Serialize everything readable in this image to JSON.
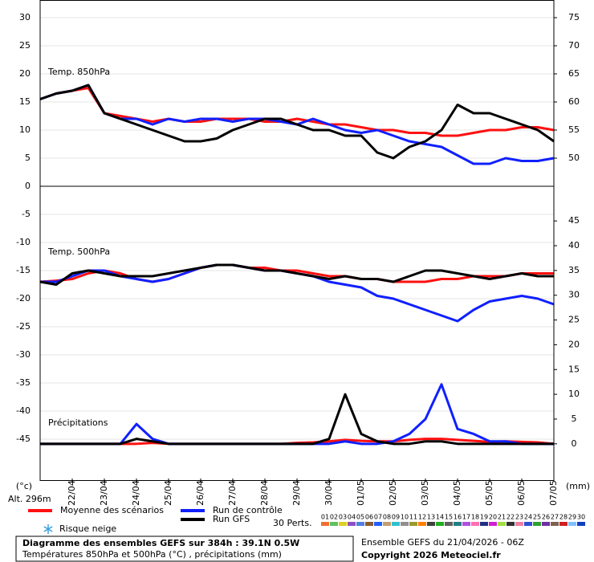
{
  "chart_data": [
    {
      "type": "line",
      "annotation": "Temp. 850hPa",
      "ylim": [
        0,
        33
      ],
      "yticks": [
        5,
        10,
        15,
        20,
        25,
        30
      ],
      "y2lim": [
        45,
        78
      ],
      "y2ticks": [
        50,
        55,
        60,
        65,
        70,
        75
      ],
      "grid": true,
      "series": [
        {
          "name": "Moyenne des scénarios",
          "color": "#ff1010",
          "values": [
            15.5,
            16.5,
            17,
            17.5,
            13,
            12.5,
            12,
            11.5,
            12,
            11.5,
            11.5,
            12,
            12,
            12,
            11.5,
            11.5,
            12,
            11.5,
            11,
            11,
            10.5,
            10,
            10,
            9.5,
            9.5,
            9,
            9,
            9.5,
            10,
            10,
            10.5,
            10.5,
            10
          ]
        },
        {
          "name": "Run de contrôle",
          "color": "#1020ff",
          "values": [
            15.5,
            16.5,
            17,
            18,
            13,
            12,
            12,
            11,
            12,
            11.5,
            12,
            12,
            11.5,
            12,
            12,
            11.5,
            11,
            12,
            11,
            10,
            9.5,
            10,
            9,
            8,
            7.5,
            7,
            5.5,
            4,
            4,
            5,
            4.5,
            4.5,
            5
          ]
        },
        {
          "name": "Run GFS",
          "color": "#000000",
          "values": [
            15.5,
            16.5,
            17,
            18,
            13,
            12,
            11,
            10,
            9,
            8,
            8,
            8.5,
            10,
            11,
            12,
            12,
            11,
            10,
            10,
            9,
            9,
            6,
            5,
            7,
            8,
            10,
            14.5,
            13,
            13,
            12,
            11,
            10,
            8
          ]
        }
      ]
    },
    {
      "type": "line",
      "annotation": "Temp. 500hPa",
      "annotation2": "Précipitations",
      "categories": [
        null,
        null,
        "22/04",
        null,
        "23/04",
        null,
        "24/04",
        null,
        "25/04",
        null,
        "26/04",
        null,
        "27/04",
        null,
        "28/04",
        null,
        "29/04",
        null,
        "30/04",
        null,
        "01/05",
        null,
        "02/05",
        null,
        "03/05",
        null,
        "04/05",
        null,
        "05/05",
        null,
        "06/05",
        null,
        "07/05"
      ],
      "ylim": [
        -52,
        0
      ],
      "yticks": [
        -45,
        -40,
        -35,
        -30,
        -25,
        -20,
        -15,
        -10,
        -5,
        0
      ],
      "y2lim": [
        -7,
        52
      ],
      "y2ticks": [
        0,
        5,
        10,
        15,
        20,
        25,
        30,
        35,
        40,
        45
      ],
      "grid": true,
      "series": [
        {
          "color": "#ff1010",
          "values": [
            -17,
            -16.8,
            -16.5,
            -15.5,
            -15,
            -15.5,
            -16.5,
            -17,
            -16.5,
            -15.5,
            -14.5,
            -14,
            -14,
            -14.5,
            -14.5,
            -15,
            -15,
            -15.5,
            -16,
            -16,
            -16.5,
            -16.5,
            -17,
            -17,
            -17,
            -16.5,
            -16.5,
            -16,
            -16,
            -16,
            -15.5,
            -15.5,
            -15.5
          ]
        },
        {
          "color": "#1020ff",
          "values": [
            -17,
            -17,
            -16,
            -15,
            -15,
            -16,
            -16.5,
            -17,
            -16.5,
            -15.5,
            -14.5,
            -14,
            -14,
            -14.5,
            -15,
            -15,
            -15.5,
            -16,
            -17,
            -17.5,
            -18,
            -19.5,
            -20,
            -21,
            -22,
            -23,
            -24,
            -22,
            -20.5,
            -20,
            -19.5,
            -20,
            -21
          ]
        },
        {
          "color": "#000000",
          "values": [
            -17,
            -17.5,
            -15.5,
            -15,
            -15.5,
            -16,
            -16,
            -16,
            -15.5,
            -15,
            -14.5,
            -14,
            -14,
            -14.5,
            -15,
            -15,
            -15.5,
            -16,
            -16.5,
            -16,
            -16.5,
            -16.5,
            -17,
            -16,
            -15,
            -15,
            -15.5,
            -16,
            -16.5,
            -16,
            -15.5,
            -16,
            -16
          ]
        },
        {
          "color": "#ff1010",
          "axis": "y2",
          "values": [
            0,
            0,
            0,
            0,
            0,
            0,
            0,
            0.2,
            0,
            0,
            0,
            0,
            0,
            0,
            0,
            0,
            0.2,
            0.3,
            0.5,
            0.8,
            0.6,
            0.5,
            0.5,
            0.8,
            1,
            1,
            0.8,
            0.6,
            0.4,
            0.5,
            0.4,
            0.3,
            0
          ]
        },
        {
          "color": "#1020ff",
          "axis": "y2",
          "values": [
            0,
            0,
            0,
            0,
            0,
            0,
            4,
            1,
            0,
            0,
            0,
            0,
            0,
            0,
            0,
            0,
            0,
            0,
            0,
            0.5,
            0,
            0,
            0.5,
            2,
            5,
            12,
            3,
            2,
            0.5,
            0.5,
            0,
            0,
            0
          ]
        },
        {
          "color": "#000000",
          "axis": "y2",
          "values": [
            0,
            0,
            0,
            0,
            0,
            0,
            1,
            0.5,
            0,
            0,
            0,
            0,
            0,
            0,
            0,
            0,
            0,
            0,
            1,
            10,
            2,
            0.5,
            0,
            0,
            0.5,
            0.5,
            0,
            0,
            0,
            0,
            0,
            0,
            0
          ]
        }
      ]
    }
  ],
  "units": {
    "left": "(°c)",
    "right": "(mm)"
  },
  "altitude": "Alt. 296m",
  "snow": "Risque neige",
  "perturbations": {
    "title": "30 Perts.",
    "members": [
      {
        "label": "01",
        "color": "#f07030"
      },
      {
        "label": "02",
        "color": "#60c060"
      },
      {
        "label": "03",
        "color": "#e0d020"
      },
      {
        "label": "04",
        "color": "#9050c0"
      },
      {
        "label": "05",
        "color": "#5080e0"
      },
      {
        "label": "06",
        "color": "#8b5a2b"
      },
      {
        "label": "07",
        "color": "#2060ff"
      },
      {
        "label": "08",
        "color": "#c0a070"
      },
      {
        "label": "09",
        "color": "#30c0d0"
      },
      {
        "label": "10",
        "color": "#909090"
      },
      {
        "label": "11",
        "color": "#9a9a30"
      },
      {
        "label": "12",
        "color": "#ff8000"
      },
      {
        "label": "13",
        "color": "#404040"
      },
      {
        "label": "14",
        "color": "#20b020"
      },
      {
        "label": "15",
        "color": "#606060"
      },
      {
        "label": "16",
        "color": "#208080"
      },
      {
        "label": "17",
        "color": "#b050e0"
      },
      {
        "label": "18",
        "color": "#ff70b0"
      },
      {
        "label": "19",
        "color": "#203080"
      },
      {
        "label": "20",
        "color": "#d020d0"
      },
      {
        "label": "21",
        "color": "#a0e040"
      },
      {
        "label": "22",
        "color": "#303030"
      },
      {
        "label": "23",
        "color": "#f080a0"
      },
      {
        "label": "24",
        "color": "#3050d0"
      },
      {
        "label": "25",
        "color": "#30a030"
      },
      {
        "label": "26",
        "color": "#7030a0"
      },
      {
        "label": "27",
        "color": "#806050"
      },
      {
        "label": "28",
        "color": "#d02020"
      },
      {
        "label": "29",
        "color": "#80c0ff"
      },
      {
        "label": "30",
        "color": "#1040c0"
      }
    ]
  },
  "footer": {
    "title": "Diagramme des ensembles GEFS sur 384h : 39.1N 0.5W",
    "subtitle": "Températures 850hPa et 500hPa (°C) , précipitations (mm)",
    "run": "Ensemble GEFS du 21/04/2026 - 06Z",
    "copyright": "Copyright 2026 Meteociel.fr"
  }
}
